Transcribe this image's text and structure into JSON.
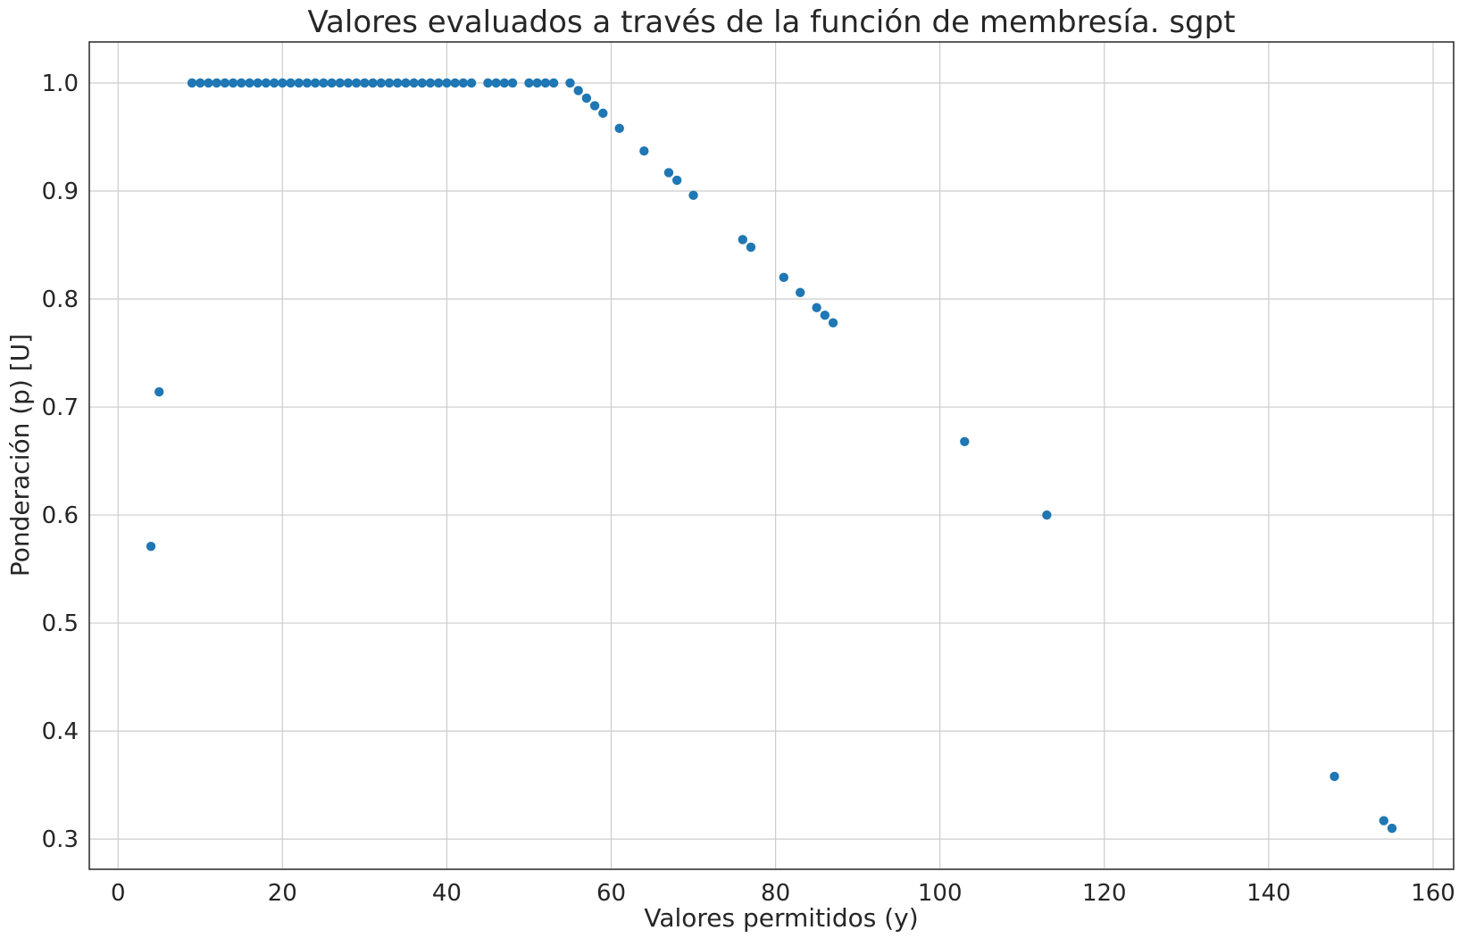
{
  "chart_data": {
    "type": "scatter",
    "title": "Valores evaluados a través de la función de membresía. sgpt",
    "xlabel": "Valores permitidos (y)",
    "ylabel": "Ponderación (p) [U]",
    "xlim": [
      -3.5,
      162.5
    ],
    "ylim": [
      0.272,
      1.038
    ],
    "xticks": [
      0,
      20,
      40,
      60,
      80,
      100,
      120,
      140,
      160
    ],
    "xtick_labels": [
      "0",
      "20",
      "40",
      "60",
      "80",
      "100",
      "120",
      "140",
      "160"
    ],
    "yticks": [
      0.3,
      0.4,
      0.5,
      0.6,
      0.7,
      0.8,
      0.9,
      1.0
    ],
    "ytick_labels": [
      "0.3",
      "0.4",
      "0.5",
      "0.6",
      "0.7",
      "0.8",
      "0.9",
      "1.0"
    ],
    "grid": true,
    "color": "#1f77b4",
    "points": [
      [
        4,
        0.571
      ],
      [
        5,
        0.714
      ],
      [
        9,
        1.0
      ],
      [
        10,
        1.0
      ],
      [
        11,
        1.0
      ],
      [
        12,
        1.0
      ],
      [
        13,
        1.0
      ],
      [
        14,
        1.0
      ],
      [
        15,
        1.0
      ],
      [
        16,
        1.0
      ],
      [
        17,
        1.0
      ],
      [
        18,
        1.0
      ],
      [
        19,
        1.0
      ],
      [
        20,
        1.0
      ],
      [
        21,
        1.0
      ],
      [
        22,
        1.0
      ],
      [
        23,
        1.0
      ],
      [
        24,
        1.0
      ],
      [
        25,
        1.0
      ],
      [
        26,
        1.0
      ],
      [
        27,
        1.0
      ],
      [
        28,
        1.0
      ],
      [
        29,
        1.0
      ],
      [
        30,
        1.0
      ],
      [
        31,
        1.0
      ],
      [
        32,
        1.0
      ],
      [
        33,
        1.0
      ],
      [
        34,
        1.0
      ],
      [
        35,
        1.0
      ],
      [
        36,
        1.0
      ],
      [
        37,
        1.0
      ],
      [
        38,
        1.0
      ],
      [
        39,
        1.0
      ],
      [
        40,
        1.0
      ],
      [
        41,
        1.0
      ],
      [
        42,
        1.0
      ],
      [
        43,
        1.0
      ],
      [
        45,
        1.0
      ],
      [
        46,
        1.0
      ],
      [
        47,
        1.0
      ],
      [
        48,
        1.0
      ],
      [
        50,
        1.0
      ],
      [
        51,
        1.0
      ],
      [
        52,
        1.0
      ],
      [
        53,
        1.0
      ],
      [
        55,
        1.0
      ],
      [
        56,
        0.993
      ],
      [
        57,
        0.986
      ],
      [
        58,
        0.979
      ],
      [
        59,
        0.972
      ],
      [
        61,
        0.958
      ],
      [
        64,
        0.937
      ],
      [
        67,
        0.917
      ],
      [
        68,
        0.91
      ],
      [
        70,
        0.896
      ],
      [
        76,
        0.855
      ],
      [
        77,
        0.848
      ],
      [
        81,
        0.82
      ],
      [
        83,
        0.806
      ],
      [
        85,
        0.792
      ],
      [
        86,
        0.785
      ],
      [
        87,
        0.778
      ],
      [
        103,
        0.668
      ],
      [
        113,
        0.6
      ],
      [
        148,
        0.358
      ],
      [
        154,
        0.317
      ],
      [
        155,
        0.31
      ]
    ]
  }
}
